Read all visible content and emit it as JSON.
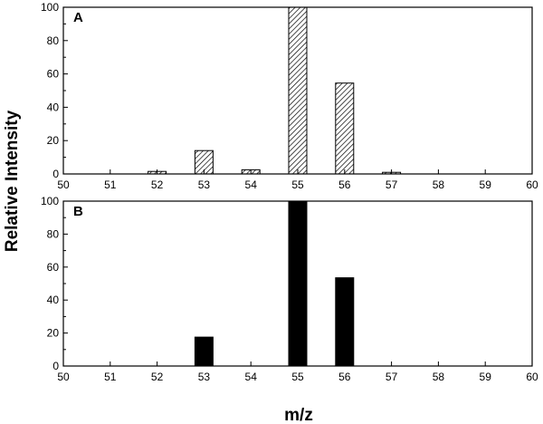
{
  "chart_data": [
    {
      "type": "bar",
      "panel_label": "A",
      "x": [
        52,
        53,
        54,
        55,
        56,
        57
      ],
      "values": [
        1.5,
        14,
        2.5,
        100,
        54.5,
        1
      ],
      "bar_style": "hatched",
      "xlim": [
        50,
        60
      ],
      "ylim": [
        0,
        100
      ],
      "xticks": [
        "50",
        "51",
        "52",
        "53",
        "54",
        "55",
        "56",
        "57",
        "58",
        "59",
        "60"
      ],
      "yticks": [
        "0",
        "20",
        "40",
        "60",
        "80",
        "100"
      ]
    },
    {
      "type": "bar",
      "panel_label": "B",
      "x": [
        53,
        55,
        56
      ],
      "values": [
        17.5,
        100,
        53.5
      ],
      "bar_style": "solid",
      "xlim": [
        50,
        60
      ],
      "ylim": [
        0,
        100
      ],
      "xticks": [
        "50",
        "51",
        "52",
        "53",
        "54",
        "55",
        "56",
        "57",
        "58",
        "59",
        "60"
      ],
      "yticks": [
        "0",
        "20",
        "40",
        "60",
        "80",
        "100"
      ]
    }
  ],
  "ylabel": "Relative Intensity",
  "xlabel": "m/z",
  "colors": {
    "bar_fill": "#000000",
    "hatch": "#000000",
    "axis": "#000000"
  }
}
